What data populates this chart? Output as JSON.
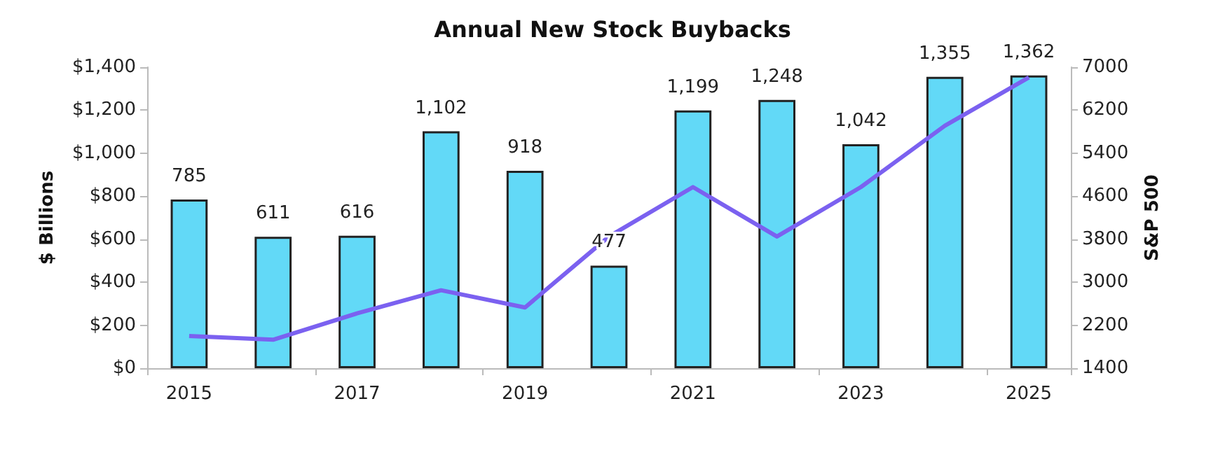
{
  "chart_data": {
    "type": "bar",
    "title": "Annual New Stock Buybacks",
    "ylabel": "$ Billions",
    "y2label": "S&P 500",
    "categories": [
      "2015",
      null,
      "2017",
      null,
      "2019",
      null,
      "2021",
      null,
      "2023",
      null,
      "2025"
    ],
    "series": [
      {
        "color": "#62d9f7",
        "values": [
          785,
          611,
          616,
          1102,
          918,
          477,
          1199,
          1248,
          1042,
          1355,
          1362
        ],
        "value_labels": [
          "785",
          "611",
          "616",
          "1,102",
          "918",
          "477",
          "1,199",
          "1,248",
          "1,042",
          "1,355",
          "1,362"
        ]
      },
      {
        "type": "line",
        "axis": "y2",
        "color": "#7b61f0",
        "values": [
          2000,
          1930,
          2420,
          2850,
          2530,
          3850,
          4770,
          3850,
          4770,
          5910,
          6810
        ]
      }
    ],
    "ylim": [
      0,
      1400
    ],
    "yticks": [
      {
        "value": 0,
        "label": "$0"
      },
      {
        "value": 200,
        "label": "$200"
      },
      {
        "value": 400,
        "label": "$400"
      },
      {
        "value": 600,
        "label": "$600"
      },
      {
        "value": 800,
        "label": "$800"
      },
      {
        "value": 1000,
        "label": "$1,000"
      },
      {
        "value": 1200,
        "label": "$1,200"
      },
      {
        "value": 1400,
        "label": "$1,400"
      }
    ],
    "y2lim": [
      1400,
      7000
    ],
    "y2ticks": [
      1400,
      2200,
      3000,
      3800,
      4600,
      5400,
      6200,
      7000
    ],
    "grid": false,
    "marker": "none"
  }
}
